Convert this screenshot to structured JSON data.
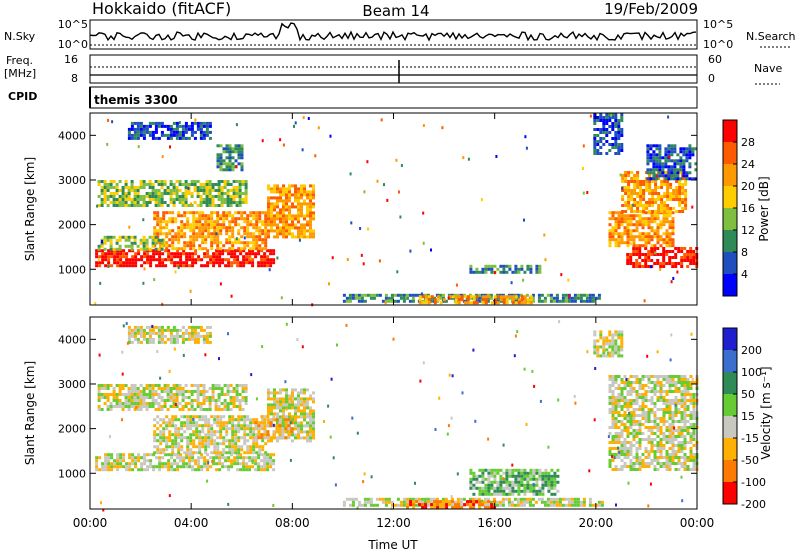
{
  "header": {
    "station": "Hokkaido (fitACF)",
    "beam": "Beam 14",
    "date": "19/Feb/2009"
  },
  "small_panels": {
    "nsky_label": "N.Sky",
    "nsearch_label": "N.Search",
    "nsky_ticks": [
      "10^5",
      "10^0"
    ],
    "nsearch_ticks": [
      "10^5",
      "10^0"
    ],
    "freq_label": "Freq.",
    "freq_unit": "[MHz]",
    "freq_ticks": [
      "16",
      "8"
    ],
    "nave_label": "Nave",
    "nave_ticks": [
      "60",
      "0"
    ],
    "cpid_label": "CPID",
    "cpid_value": "themis 3300"
  },
  "colors": {
    "power": [
      "#0000ff",
      "#1f4fbf",
      "#2e8b57",
      "#7fbf3f",
      "#ffcc00",
      "#ff9900",
      "#ff5a00",
      "#ff0000"
    ],
    "velocity": [
      "#1f1fcf",
      "#3a6fd0",
      "#2e8b57",
      "#66cc33",
      "#c8c8c0",
      "#ffb000",
      "#ff7a00",
      "#ff0000"
    ],
    "ground_scatter": "#c8c8c0"
  },
  "chart_data": [
    {
      "type": "heatmap",
      "name": "power",
      "xlabel": "",
      "ylabel": "Slant Range [km]",
      "xlim": [
        0,
        24
      ],
      "ylim": [
        200,
        4500
      ],
      "y_ticks": [
        1000,
        2000,
        3000,
        4000
      ],
      "y_tick_labels": [
        "1000",
        "2000",
        "3000",
        "4000"
      ],
      "colorbar": {
        "label": "Power [dB]",
        "ticks": [
          4,
          8,
          12,
          16,
          20,
          24,
          28
        ],
        "range": [
          0,
          32
        ]
      },
      "echo_regions": [
        {
          "t": [
            0.2,
            7.3
          ],
          "r": [
            1050,
            1450
          ],
          "level": 7
        },
        {
          "t": [
            2.5,
            7.0
          ],
          "r": [
            1450,
            2300
          ],
          "level": 5
        },
        {
          "t": [
            0.3,
            2.8
          ],
          "r": [
            1450,
            1750
          ],
          "level": 3
        },
        {
          "t": [
            0.3,
            6.2
          ],
          "r": [
            2400,
            3000
          ],
          "level": 3
        },
        {
          "t": [
            7.0,
            8.8
          ],
          "r": [
            1700,
            2900
          ],
          "level": 5
        },
        {
          "t": [
            1.5,
            4.8
          ],
          "r": [
            3900,
            4300
          ],
          "level": 1
        },
        {
          "t": [
            5.0,
            6.0
          ],
          "r": [
            3200,
            3800
          ],
          "level": 2
        },
        {
          "t": [
            10.0,
            20.3
          ],
          "r": [
            250,
            450
          ],
          "level": 2
        },
        {
          "t": [
            13.0,
            17.5
          ],
          "r": [
            250,
            420
          ],
          "level": 5
        },
        {
          "t": [
            15.0,
            17.8
          ],
          "r": [
            900,
            1100
          ],
          "level": 2
        },
        {
          "t": [
            21.2,
            24.0
          ],
          "r": [
            1050,
            1500
          ],
          "level": 7
        },
        {
          "t": [
            20.5,
            23.0
          ],
          "r": [
            1500,
            2300
          ],
          "level": 5
        },
        {
          "t": [
            21.0,
            23.5
          ],
          "r": [
            2300,
            3200
          ],
          "level": 5
        },
        {
          "t": [
            19.9,
            21.0
          ],
          "r": [
            3600,
            4500
          ],
          "level": 1
        },
        {
          "t": [
            22.0,
            24.0
          ],
          "r": [
            3000,
            3800
          ],
          "level": 1
        }
      ]
    },
    {
      "type": "heatmap",
      "name": "velocity",
      "xlabel": "Time UT",
      "ylabel": "Slant Range [km]",
      "xlim": [
        0,
        24
      ],
      "ylim": [
        200,
        4500
      ],
      "x_ticks": [
        0,
        4,
        8,
        12,
        16,
        20,
        24
      ],
      "x_tick_labels": [
        "00:00",
        "04:00",
        "08:00",
        "12:00",
        "16:00",
        "20:00",
        "00:00"
      ],
      "y_ticks": [
        1000,
        2000,
        3000,
        4000
      ],
      "y_tick_labels": [
        "1000",
        "2000",
        "3000",
        "4000"
      ],
      "colorbar": {
        "label": "Velocity [m s⁻¹]",
        "ticks": [
          200,
          100,
          50,
          15,
          -15,
          -50,
          -100,
          -200
        ],
        "range": [
          -250,
          250
        ]
      },
      "echo_regions": [
        {
          "t": [
            0.2,
            7.3
          ],
          "r": [
            1050,
            1450
          ],
          "level": 4
        },
        {
          "t": [
            2.5,
            7.0
          ],
          "r": [
            1450,
            2300
          ],
          "level": 4
        },
        {
          "t": [
            0.3,
            6.2
          ],
          "r": [
            2400,
            3000
          ],
          "level": 4
        },
        {
          "t": [
            7.0,
            8.8
          ],
          "r": [
            1700,
            2900
          ],
          "level": 4
        },
        {
          "t": [
            6.5,
            8.0
          ],
          "r": [
            1800,
            2300
          ],
          "level": 5
        },
        {
          "t": [
            1.5,
            4.8
          ],
          "r": [
            3900,
            4300
          ],
          "level": 4
        },
        {
          "t": [
            10.0,
            20.3
          ],
          "r": [
            250,
            450
          ],
          "level": 4
        },
        {
          "t": [
            12.5,
            16.0
          ],
          "r": [
            250,
            400
          ],
          "level": 6
        },
        {
          "t": [
            15.0,
            18.5
          ],
          "r": [
            500,
            1100
          ],
          "level": 3
        },
        {
          "t": [
            20.5,
            24.0
          ],
          "r": [
            1050,
            3200
          ],
          "level": 4
        },
        {
          "t": [
            19.9,
            21.0
          ],
          "r": [
            3600,
            4200
          ],
          "level": 4
        }
      ]
    }
  ]
}
